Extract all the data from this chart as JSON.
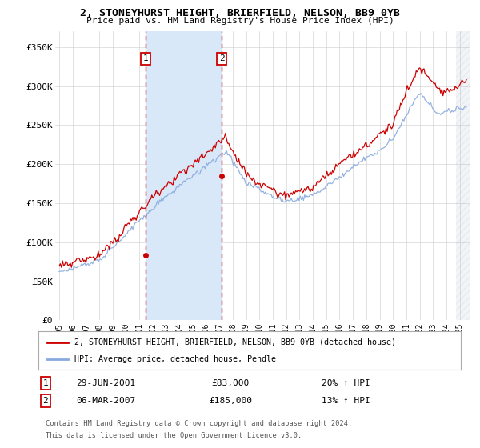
{
  "title": "2, STONEYHURST HEIGHT, BRIERFIELD, NELSON, BB9 0YB",
  "subtitle": "Price paid vs. HM Land Registry's House Price Index (HPI)",
  "ylabel_ticks": [
    "£0",
    "£50K",
    "£100K",
    "£150K",
    "£200K",
    "£250K",
    "£300K",
    "£350K"
  ],
  "ylabel_values": [
    0,
    50000,
    100000,
    150000,
    200000,
    250000,
    300000,
    350000
  ],
  "ylim": [
    0,
    370000
  ],
  "xlim_start": 1994.7,
  "xlim_end": 2025.8,
  "xtick_years": [
    1995,
    1996,
    1997,
    1998,
    1999,
    2000,
    2001,
    2002,
    2003,
    2004,
    2005,
    2006,
    2007,
    2008,
    2009,
    2010,
    2011,
    2012,
    2013,
    2014,
    2015,
    2016,
    2017,
    2018,
    2019,
    2020,
    2021,
    2022,
    2023,
    2024,
    2025
  ],
  "sale1_x": 2001.49,
  "sale1_y": 83000,
  "sale1_label": "1",
  "sale1_date": "29-JUN-2001",
  "sale1_price": "£83,000",
  "sale1_hpi": "20% ↑ HPI",
  "sale2_x": 2007.18,
  "sale2_y": 185000,
  "sale2_label": "2",
  "sale2_date": "06-MAR-2007",
  "sale2_price": "£185,000",
  "sale2_hpi": "13% ↑ HPI",
  "line_color_red": "#cc0000",
  "line_color_blue": "#88aadd",
  "shade_color": "#d8e8f8",
  "grid_color": "#cccccc",
  "background_color": "#ffffff",
  "legend_line1": "2, STONEYHURST HEIGHT, BRIERFIELD, NELSON, BB9 0YB (detached house)",
  "legend_line2": "HPI: Average price, detached house, Pendle",
  "footer1": "Contains HM Land Registry data © Crown copyright and database right 2024.",
  "footer2": "This data is licensed under the Open Government Licence v3.0.",
  "hpi_seed": 101,
  "red_seed": 202
}
